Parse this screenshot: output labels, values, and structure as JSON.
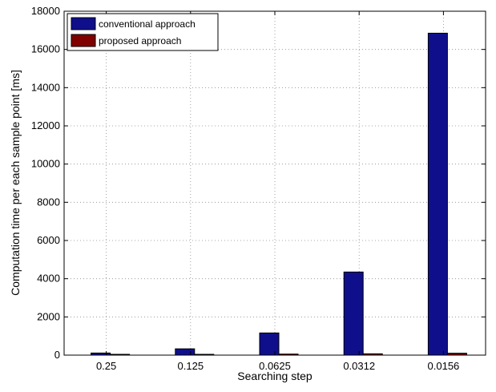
{
  "chart_data": {
    "type": "bar",
    "categories": [
      "0.25",
      "0.125",
      "0.0625",
      "0.0312",
      "0.0156"
    ],
    "series": [
      {
        "name": "conventional approach",
        "color": "#0f0f8c",
        "values": [
          110,
          330,
          1160,
          4350,
          16850
        ]
      },
      {
        "name": "proposed approach",
        "color": "#800000",
        "values": [
          25,
          40,
          55,
          70,
          100
        ]
      }
    ],
    "xlabel": "Searching step",
    "ylabel": "Computation time per each sample point [ms]",
    "ylim": [
      0,
      18000
    ],
    "yticks": [
      "0",
      "2000",
      "4000",
      "6000",
      "8000",
      "10000",
      "12000",
      "14000",
      "16000",
      "18000"
    ],
    "grid": true,
    "legend_position": "top-left"
  }
}
